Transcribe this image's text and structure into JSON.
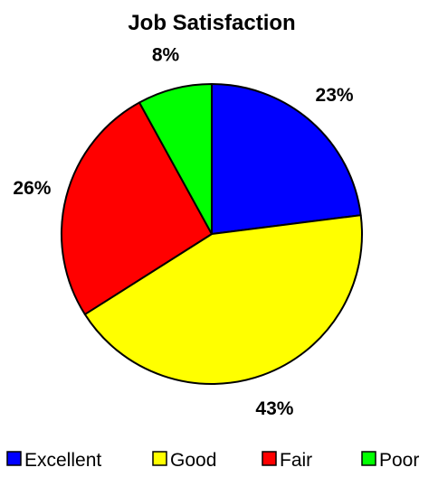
{
  "chart_data": {
    "type": "pie",
    "title": "Job Satisfaction",
    "slices": [
      {
        "label": "Excellent",
        "value": 23,
        "display": "23%",
        "color": "#0000FF"
      },
      {
        "label": "Good",
        "value": 43,
        "display": "43%",
        "color": "#FFFF00"
      },
      {
        "label": "Fair",
        "value": 26,
        "display": "26%",
        "color": "#FF0000"
      },
      {
        "label": "Poor",
        "value": 8,
        "display": "8%",
        "color": "#00FF00"
      }
    ],
    "start_angle_deg": 0,
    "direction": "clockwise",
    "legend_position": "bottom"
  }
}
